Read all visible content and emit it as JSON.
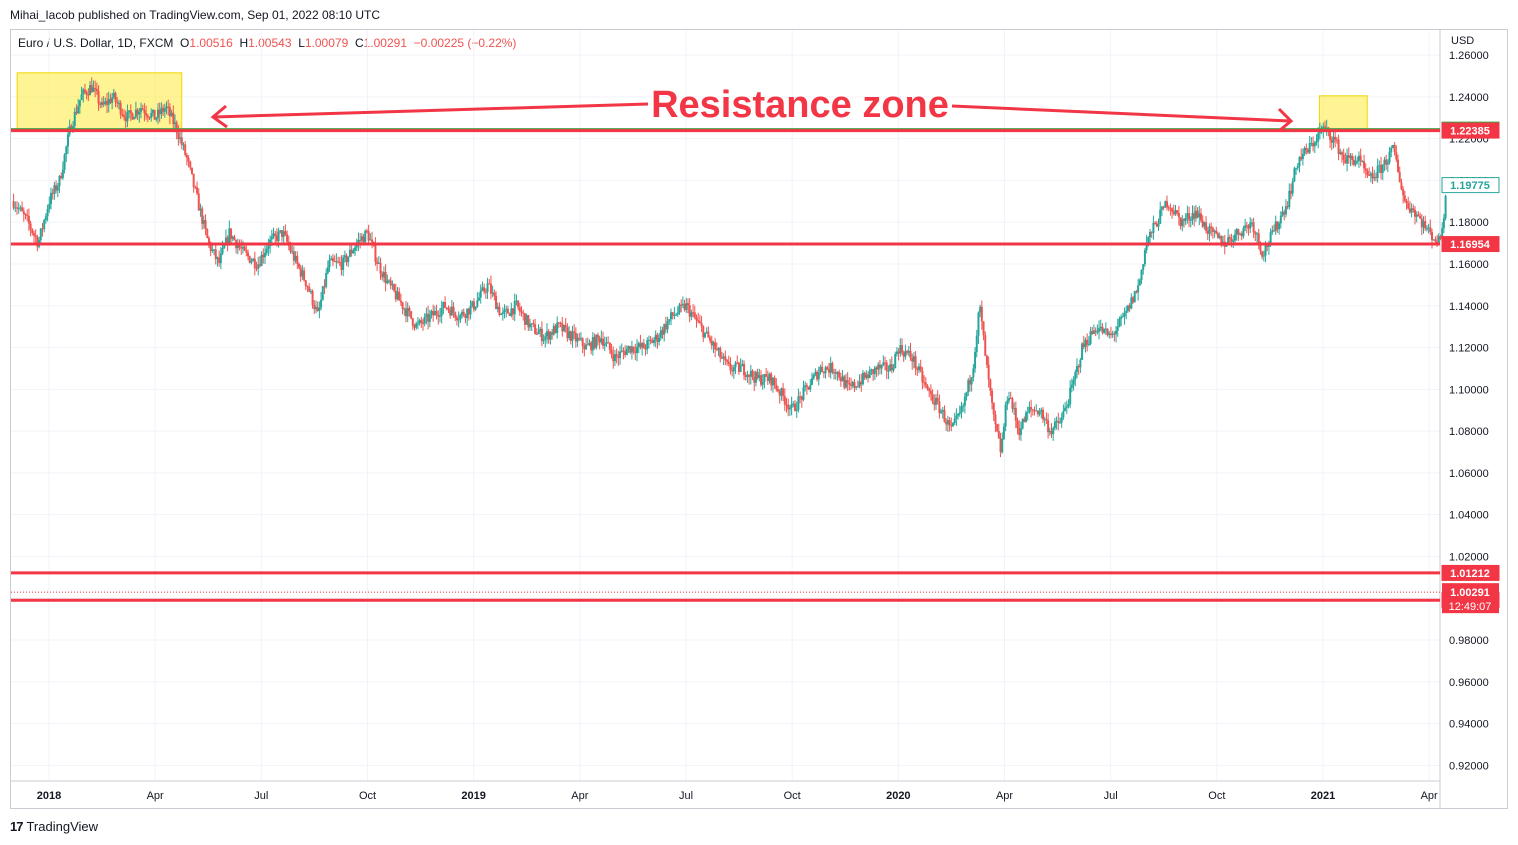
{
  "publisher_line": "Mihai_Iacob published on TradingView.com, Sep 01, 2022 08:10 UTC",
  "legend": {
    "symbol": "Euro / U.S. Dollar, 1D, FXCM",
    "o_label": "O",
    "o_value": "1.00516",
    "h_label": "H",
    "h_value": "1.00543",
    "l_label": "L",
    "l_value": "1.00079",
    "c_label": "C",
    "c_value": "1.00291",
    "change": "−0.00225 (−0.22%)"
  },
  "footer": {
    "logo_glyph": "17",
    "brand": "TradingView"
  },
  "colors": {
    "up": "#26a69a",
    "down": "#ef5350",
    "level": "#f23645",
    "green_level": "#43a047",
    "zone": "#ffeb3b",
    "grid": "#f0f3fa"
  },
  "chart_data": {
    "type": "candlestick",
    "currency_label": "USD",
    "ylim": [
      0.913,
      1.272
    ],
    "y_ticks": [
      "1.26000",
      "1.24000",
      "1.22000",
      "1.20000",
      "1.18000",
      "1.16000",
      "1.14000",
      "1.12000",
      "1.10000",
      "1.08000",
      "1.06000",
      "1.04000",
      "1.02000",
      "1.00000",
      "0.98000",
      "0.96000",
      "0.94000",
      "0.92000"
    ],
    "y_tick_values": [
      1.26,
      1.24,
      1.22,
      1.2,
      1.18,
      1.16,
      1.14,
      1.12,
      1.1,
      1.08,
      1.06,
      1.04,
      1.02,
      1.0,
      0.98,
      0.96,
      0.94,
      0.92
    ],
    "x_ticks": [
      {
        "label": "2018",
        "bold": true,
        "t": 0.0
      },
      {
        "label": "Apr",
        "bold": false,
        "t": 3.0
      },
      {
        "label": "Jul",
        "bold": false,
        "t": 6.0
      },
      {
        "label": "Oct",
        "bold": false,
        "t": 9.0
      },
      {
        "label": "2019",
        "bold": true,
        "t": 12.0
      },
      {
        "label": "Apr",
        "bold": false,
        "t": 15.0
      },
      {
        "label": "Jul",
        "bold": false,
        "t": 18.0
      },
      {
        "label": "Oct",
        "bold": false,
        "t": 21.0
      },
      {
        "label": "2020",
        "bold": true,
        "t": 24.0
      },
      {
        "label": "Apr",
        "bold": false,
        "t": 27.0
      },
      {
        "label": "Jul",
        "bold": false,
        "t": 30.0
      },
      {
        "label": "Oct",
        "bold": false,
        "t": 33.0
      },
      {
        "label": "2021",
        "bold": true,
        "t": 36.0
      },
      {
        "label": "Apr",
        "bold": false,
        "t": 39.0
      }
    ],
    "x_range_months": [
      -1.05,
      39.5
    ],
    "price_path": [
      [
        -1.0,
        1.19
      ],
      [
        -0.6,
        1.18
      ],
      [
        -0.3,
        1.17
      ],
      [
        0.0,
        1.19
      ],
      [
        0.3,
        1.2
      ],
      [
        0.6,
        1.225
      ],
      [
        0.9,
        1.24
      ],
      [
        1.2,
        1.245
      ],
      [
        1.5,
        1.235
      ],
      [
        1.8,
        1.24
      ],
      [
        2.2,
        1.23
      ],
      [
        2.6,
        1.235
      ],
      [
        3.0,
        1.23
      ],
      [
        3.3,
        1.235
      ],
      [
        3.6,
        1.225
      ],
      [
        3.9,
        1.21
      ],
      [
        4.2,
        1.19
      ],
      [
        4.5,
        1.17
      ],
      [
        4.8,
        1.16
      ],
      [
        5.1,
        1.175
      ],
      [
        5.5,
        1.165
      ],
      [
        5.9,
        1.16
      ],
      [
        6.2,
        1.17
      ],
      [
        6.6,
        1.175
      ],
      [
        7.0,
        1.16
      ],
      [
        7.3,
        1.15
      ],
      [
        7.6,
        1.135
      ],
      [
        7.9,
        1.16
      ],
      [
        8.3,
        1.16
      ],
      [
        8.7,
        1.17
      ],
      [
        9.0,
        1.175
      ],
      [
        9.3,
        1.16
      ],
      [
        9.6,
        1.15
      ],
      [
        10.0,
        1.14
      ],
      [
        10.4,
        1.13
      ],
      [
        10.8,
        1.135
      ],
      [
        11.2,
        1.14
      ],
      [
        11.6,
        1.135
      ],
      [
        12.0,
        1.14
      ],
      [
        12.4,
        1.15
      ],
      [
        12.8,
        1.135
      ],
      [
        13.2,
        1.14
      ],
      [
        13.6,
        1.13
      ],
      [
        14.0,
        1.125
      ],
      [
        14.4,
        1.13
      ],
      [
        14.8,
        1.125
      ],
      [
        15.2,
        1.12
      ],
      [
        15.6,
        1.125
      ],
      [
        16.0,
        1.115
      ],
      [
        16.4,
        1.12
      ],
      [
        16.8,
        1.12
      ],
      [
        17.2,
        1.125
      ],
      [
        17.6,
        1.135
      ],
      [
        18.0,
        1.14
      ],
      [
        18.4,
        1.13
      ],
      [
        18.8,
        1.12
      ],
      [
        19.2,
        1.11
      ],
      [
        19.6,
        1.11
      ],
      [
        20.0,
        1.105
      ],
      [
        20.4,
        1.105
      ],
      [
        20.8,
        1.095
      ],
      [
        21.0,
        1.09
      ],
      [
        21.4,
        1.1
      ],
      [
        21.8,
        1.11
      ],
      [
        22.2,
        1.11
      ],
      [
        22.6,
        1.1
      ],
      [
        23.0,
        1.105
      ],
      [
        23.4,
        1.11
      ],
      [
        23.8,
        1.11
      ],
      [
        24.0,
        1.12
      ],
      [
        24.4,
        1.115
      ],
      [
        24.8,
        1.1
      ],
      [
        25.2,
        1.09
      ],
      [
        25.5,
        1.08
      ],
      [
        25.8,
        1.09
      ],
      [
        26.1,
        1.11
      ],
      [
        26.3,
        1.14
      ],
      [
        26.5,
        1.11
      ],
      [
        26.7,
        1.085
      ],
      [
        26.9,
        1.07
      ],
      [
        27.1,
        1.1
      ],
      [
        27.4,
        1.08
      ],
      [
        27.7,
        1.09
      ],
      [
        28.0,
        1.09
      ],
      [
        28.3,
        1.08
      ],
      [
        28.6,
        1.085
      ],
      [
        28.9,
        1.1
      ],
      [
        29.2,
        1.12
      ],
      [
        29.6,
        1.13
      ],
      [
        30.0,
        1.125
      ],
      [
        30.4,
        1.135
      ],
      [
        30.8,
        1.15
      ],
      [
        31.0,
        1.17
      ],
      [
        31.3,
        1.18
      ],
      [
        31.6,
        1.19
      ],
      [
        32.0,
        1.18
      ],
      [
        32.4,
        1.185
      ],
      [
        32.8,
        1.175
      ],
      [
        33.2,
        1.17
      ],
      [
        33.6,
        1.175
      ],
      [
        34.0,
        1.18
      ],
      [
        34.3,
        1.165
      ],
      [
        34.6,
        1.175
      ],
      [
        35.0,
        1.19
      ],
      [
        35.3,
        1.21
      ],
      [
        35.6,
        1.215
      ],
      [
        36.0,
        1.225
      ],
      [
        36.3,
        1.22
      ],
      [
        36.6,
        1.21
      ],
      [
        37.0,
        1.21
      ],
      [
        37.3,
        1.2
      ],
      [
        37.6,
        1.205
      ],
      [
        38.0,
        1.215
      ],
      [
        38.3,
        1.19
      ],
      [
        38.6,
        1.185
      ],
      [
        39.0,
        1.175
      ],
      [
        39.3,
        1.17
      ],
      [
        39.5,
        1.195
      ]
    ],
    "annotation": {
      "text": "Resistance zone"
    },
    "zones": [
      {
        "t0": -0.9,
        "t1": 3.75,
        "y0": 1.2235,
        "y1": 1.2515
      },
      {
        "t0": 35.9,
        "t1": 37.25,
        "y0": 1.2235,
        "y1": 1.2405
      }
    ],
    "levels": [
      {
        "value": 1.22432,
        "label": "1.22432",
        "color": "#43a047"
      },
      {
        "value": 1.22385,
        "label": "1.22385",
        "color": "#f23645"
      },
      {
        "value": 1.16954,
        "label": "1.16954",
        "color": "#f23645"
      },
      {
        "value": 1.01212,
        "label": "1.01212",
        "color": "#f23645"
      },
      {
        "value": 0.99906,
        "label": "0.99906",
        "color": "#f23645"
      }
    ],
    "current_price": {
      "value": 1.00291,
      "label": "1.00291",
      "countdown": "12:49:07"
    },
    "last_bar_price": {
      "value": 1.19775,
      "label": "1.19775"
    }
  }
}
